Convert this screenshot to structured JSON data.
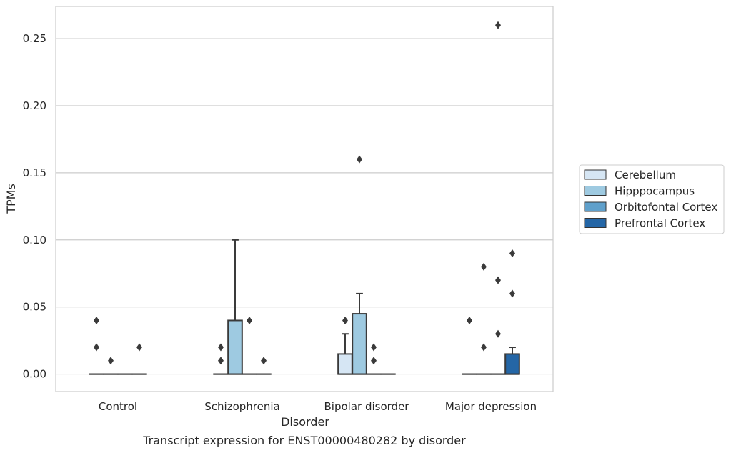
{
  "caption": "Transcript expression for ENST00000480282 by disorder",
  "chart_data": {
    "type": "box",
    "title": "",
    "xlabel": "Disorder",
    "ylabel": "TPMs",
    "ylim": [
      -0.013,
      0.274
    ],
    "yticks": [
      0.0,
      0.05,
      0.1,
      0.15,
      0.2,
      0.25
    ],
    "ytick_labels": [
      "0.00",
      "0.05",
      "0.10",
      "0.15",
      "0.20",
      "0.25"
    ],
    "grid": "horizontal",
    "legend_position": "right",
    "categories": [
      "Control",
      "Schizophrenia",
      "Bipolar disorder",
      "Major depression"
    ],
    "series": [
      {
        "name": "Cerebellum",
        "color": "#d6e6f4",
        "boxes": [
          {
            "q1": 0,
            "median": 0,
            "q3": 0,
            "whisker_low": 0,
            "whisker_high": 0,
            "outliers": [
              0.04,
              0.02
            ]
          },
          {
            "q1": 0,
            "median": 0,
            "q3": 0,
            "whisker_low": 0,
            "whisker_high": 0,
            "outliers": [
              0.02,
              0.01
            ]
          },
          {
            "q1": 0,
            "median": 0,
            "q3": 0.015,
            "whisker_low": 0,
            "whisker_high": 0.03,
            "outliers": [
              0.04
            ]
          },
          {
            "q1": 0,
            "median": 0,
            "q3": 0,
            "whisker_low": 0,
            "whisker_high": 0,
            "outliers": [
              0.04
            ]
          }
        ]
      },
      {
        "name": "Hipppocampus",
        "color": "#9ecae1",
        "boxes": [
          {
            "q1": 0,
            "median": 0,
            "q3": 0,
            "whisker_low": 0,
            "whisker_high": 0,
            "outliers": [
              0.01
            ]
          },
          {
            "q1": 0,
            "median": 0,
            "q3": 0.04,
            "whisker_low": 0,
            "whisker_high": 0.1,
            "outliers": []
          },
          {
            "q1": 0,
            "median": 0,
            "q3": 0.045,
            "whisker_low": 0,
            "whisker_high": 0.06,
            "outliers": [
              0.16
            ]
          },
          {
            "q1": 0,
            "median": 0,
            "q3": 0,
            "whisker_low": 0,
            "whisker_high": 0,
            "outliers": [
              0.08,
              0.02
            ]
          }
        ]
      },
      {
        "name": "Orbitofontal Cortex",
        "color": "#5fa0cb",
        "boxes": [
          {
            "q1": 0,
            "median": 0,
            "q3": 0,
            "whisker_low": 0,
            "whisker_high": 0,
            "outliers": []
          },
          {
            "q1": 0,
            "median": 0,
            "q3": 0,
            "whisker_low": 0,
            "whisker_high": 0,
            "outliers": [
              0.04
            ]
          },
          {
            "q1": 0,
            "median": 0,
            "q3": 0,
            "whisker_low": 0,
            "whisker_high": 0,
            "outliers": [
              0.02,
              0.01
            ]
          },
          {
            "q1": 0,
            "median": 0,
            "q3": 0,
            "whisker_low": 0,
            "whisker_high": 0,
            "outliers": [
              0.26,
              0.07,
              0.03
            ]
          }
        ]
      },
      {
        "name": "Prefrontal Cortex",
        "color": "#2466a6",
        "boxes": [
          {
            "q1": 0,
            "median": 0,
            "q3": 0,
            "whisker_low": 0,
            "whisker_high": 0,
            "outliers": [
              0.02
            ]
          },
          {
            "q1": 0,
            "median": 0,
            "q3": 0,
            "whisker_low": 0,
            "whisker_high": 0,
            "outliers": [
              0.01
            ]
          },
          {
            "q1": 0,
            "median": 0,
            "q3": 0,
            "whisker_low": 0,
            "whisker_high": 0,
            "outliers": []
          },
          {
            "q1": 0,
            "median": 0,
            "q3": 0.015,
            "whisker_low": 0,
            "whisker_high": 0.02,
            "outliers": [
              0.09,
              0.06
            ]
          }
        ]
      }
    ]
  }
}
